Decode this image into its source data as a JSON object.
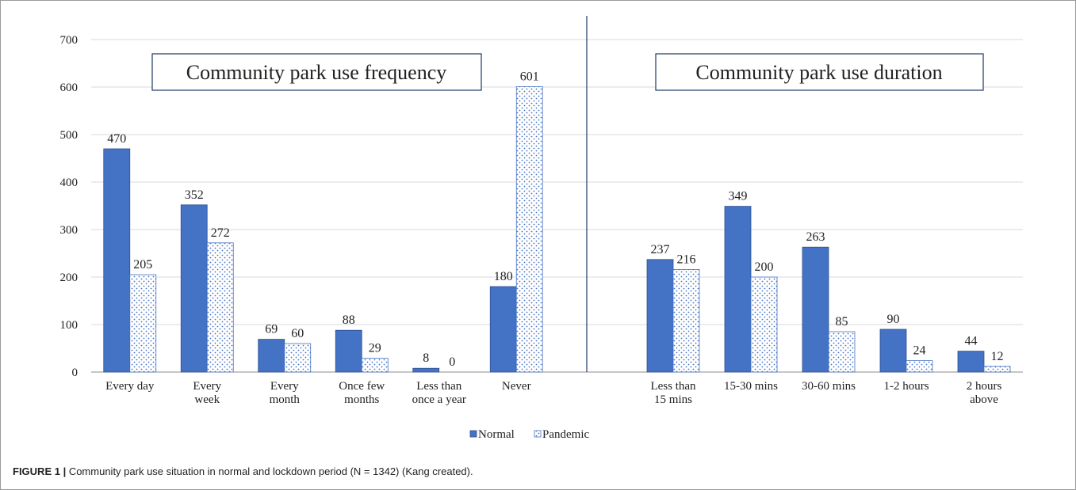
{
  "chart_data": {
    "type": "bar",
    "ylim": [
      0,
      700
    ],
    "yticks": [
      0,
      100,
      200,
      300,
      400,
      500,
      600,
      700
    ],
    "grid": true,
    "legend_position": "bottom-center",
    "series_colors": {
      "Normal": "#4472c4",
      "Pandemic": "#ffffff"
    },
    "legend": [
      "Normal",
      "Pandemic"
    ],
    "panels": [
      {
        "title": "Community park use frequency",
        "categories": [
          [
            "Every day"
          ],
          [
            "Every",
            "week"
          ],
          [
            "Every",
            "month"
          ],
          [
            "Once few",
            "months"
          ],
          [
            "Less than",
            "once a year"
          ],
          [
            "Never"
          ]
        ],
        "series": [
          {
            "name": "Normal",
            "values": [
              470,
              352,
              69,
              88,
              8,
              180
            ]
          },
          {
            "name": "Pandemic",
            "values": [
              205,
              272,
              60,
              29,
              0,
              601
            ]
          }
        ]
      },
      {
        "title": "Community park use duration",
        "categories": [
          [
            "Less than",
            "15 mins"
          ],
          [
            "15-30 mins"
          ],
          [
            "30-60 mins"
          ],
          [
            "1-2 hours"
          ],
          [
            "2 hours",
            "above"
          ]
        ],
        "series": [
          {
            "name": "Normal",
            "values": [
              237,
              349,
              263,
              90,
              44
            ]
          },
          {
            "name": "Pandemic",
            "values": [
              216,
              200,
              85,
              24,
              12
            ]
          }
        ]
      }
    ]
  },
  "caption": {
    "figure_label": "FIGURE 1 |",
    "text": " Community park use situation in normal and lockdown period (N = 1342) (Kang created)."
  }
}
